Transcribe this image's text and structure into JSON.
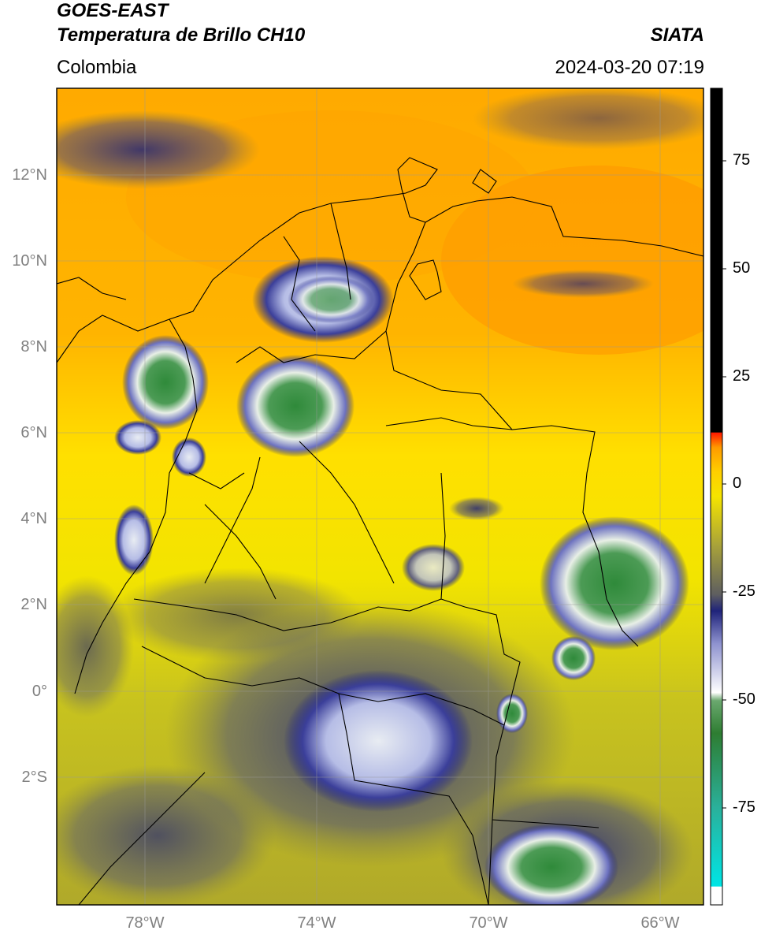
{
  "header": {
    "satellite": "GOES-EAST",
    "product": "Temperatura de Brillo CH10",
    "source": "SIATA",
    "region": "Colombia",
    "datetime": "2024-03-20 07:19"
  },
  "map": {
    "lat_labels": [
      "12°N",
      "10°N",
      "8°N",
      "6°N",
      "4°N",
      "2°N",
      "0°",
      "2°S"
    ],
    "lon_labels": [
      "78°W",
      "74°W",
      "70°W",
      "66°W"
    ]
  },
  "colorbar": {
    "ticks": [
      "75",
      "50",
      "25",
      "0",
      "-25",
      "-50",
      "-75"
    ],
    "stops": [
      "#ffffff",
      "#00e5e5",
      "#2ab09a",
      "#2e7d32",
      "#ffffff",
      "#1f237a",
      "#6e6e52",
      "#f5e400",
      "#ff9b00",
      "#ff1a00",
      "#000000"
    ]
  }
}
